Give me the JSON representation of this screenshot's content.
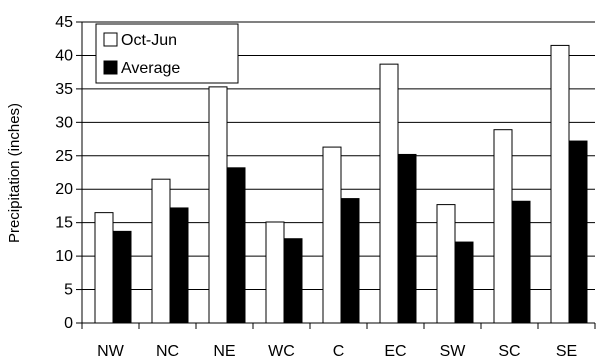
{
  "chart_data": {
    "type": "bar",
    "title": "",
    "xlabel": "",
    "ylabel": "Precipitation (inches)",
    "categories": [
      "NW",
      "NC",
      "NE",
      "WC",
      "C",
      "EC",
      "SW",
      "SC",
      "SE"
    ],
    "series": [
      {
        "name": "Oct-Jun",
        "values": [
          16.5,
          21.5,
          35.3,
          15.1,
          26.3,
          38.7,
          17.7,
          28.9,
          41.5
        ]
      },
      {
        "name": "Average",
        "values": [
          13.7,
          17.2,
          23.2,
          12.6,
          18.6,
          25.2,
          12.1,
          18.2,
          27.2
        ]
      }
    ],
    "ylim": [
      0,
      45
    ],
    "yticks": [
      0,
      5,
      10,
      15,
      20,
      25,
      30,
      35,
      40,
      45
    ],
    "grid": true,
    "legend_position": "top-left",
    "colors": {
      "Oct-Jun": "#ffffff",
      "Average": "#000000",
      "outline": "#000000",
      "grid": "#000000"
    }
  }
}
